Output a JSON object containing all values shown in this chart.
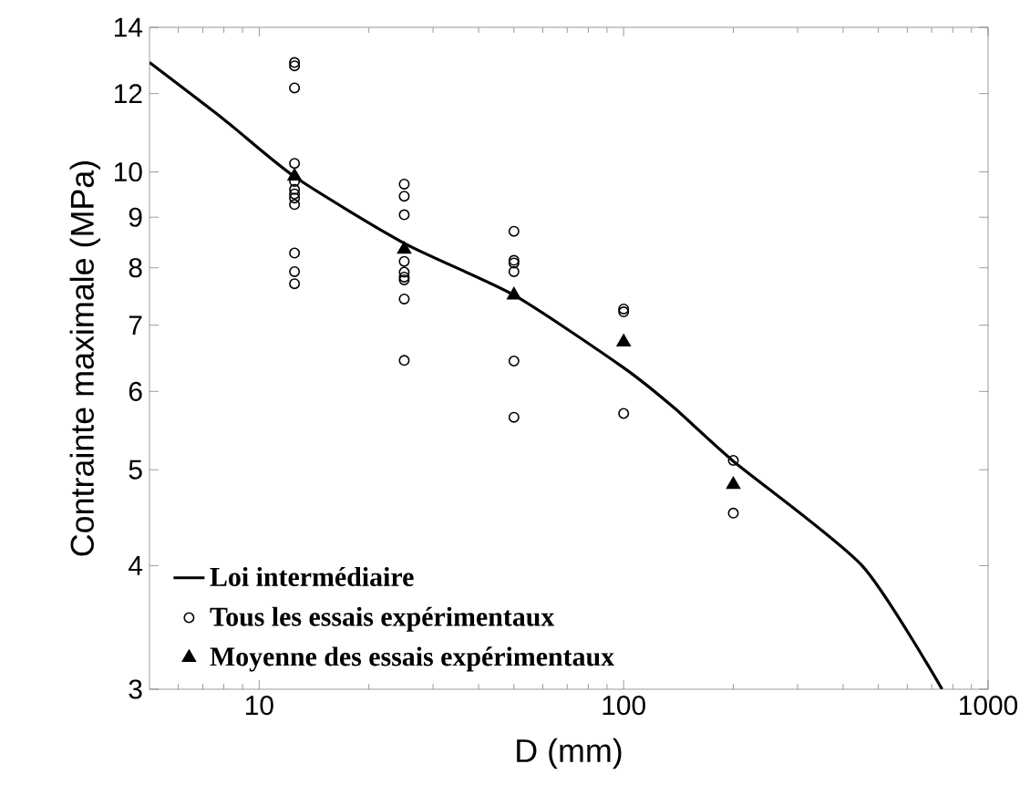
{
  "chart_data": {
    "type": "line",
    "xlabel": "D (mm)",
    "ylabel": "Contrainte maximale (MPa)",
    "log": "xy",
    "xlim": [
      5,
      1000
    ],
    "ylim": [
      3,
      14
    ],
    "xticks": [
      {
        "value": 6,
        "label": null
      },
      {
        "value": 7,
        "label": null
      },
      {
        "value": 8,
        "label": null
      },
      {
        "value": 9,
        "label": null
      },
      10,
      {
        "value": 20,
        "label": null
      },
      {
        "value": 30,
        "label": null
      },
      {
        "value": 40,
        "label": null
      },
      {
        "value": 50,
        "label": null
      },
      {
        "value": 60,
        "label": null
      },
      {
        "value": 70,
        "label": null
      },
      {
        "value": 80,
        "label": null
      },
      {
        "value": 90,
        "label": null
      },
      100,
      {
        "value": 200,
        "label": null
      },
      {
        "value": 300,
        "label": null
      },
      {
        "value": 400,
        "label": null
      },
      {
        "value": 500,
        "label": null
      },
      {
        "value": 600,
        "label": null
      },
      {
        "value": 700,
        "label": null
      },
      {
        "value": 800,
        "label": null
      },
      {
        "value": 900,
        "label": null
      },
      1000
    ],
    "yticks": [
      3,
      4,
      5,
      6,
      7,
      8,
      9,
      10,
      12,
      14
    ],
    "grid": false,
    "legend": "bottom left",
    "series": [
      {
        "name": "Loi intermédiaire",
        "type": "line",
        "marker": "none",
        "line_style": "solid",
        "color": "#000000",
        "x": [
          5,
          8,
          12.5,
          25,
          50,
          100,
          138,
          200,
          451,
          748
        ],
        "values": [
          12.9,
          11.3,
          9.89,
          8.47,
          7.51,
          6.34,
          5.77,
          5.1,
          4,
          3
        ]
      },
      {
        "name": "Tous les essais expérimentaux",
        "type": "scatter",
        "marker": "circle",
        "color": "#000000",
        "x": [
          12.5,
          12.5,
          12.5,
          12.5,
          12.5,
          12.5,
          12.5,
          12.5,
          12.5,
          12.5,
          12.5,
          12.5,
          25,
          25,
          25,
          25,
          25,
          25,
          25,
          25,
          25,
          50,
          50,
          50,
          50,
          50,
          50,
          100,
          100,
          100,
          200,
          200
        ],
        "values": [
          12.9,
          12.8,
          12.16,
          10.2,
          9.78,
          9.6,
          9.5,
          9.41,
          9.27,
          8.28,
          7.93,
          7.71,
          9.72,
          9.45,
          9.05,
          8.12,
          7.92,
          7.83,
          7.78,
          7.44,
          6.45,
          8.71,
          8.14,
          8.09,
          7.93,
          6.44,
          5.65,
          7.27,
          7.22,
          5.7,
          5.11,
          4.52
        ]
      },
      {
        "name": "Moyenne des essais expérimentaux",
        "type": "scatter",
        "marker": "triangle",
        "color": "#000000",
        "x": [
          12.5,
          25,
          50,
          100,
          200
        ],
        "values": [
          9.9,
          8.35,
          7.51,
          6.73,
          4.83
        ]
      }
    ]
  }
}
